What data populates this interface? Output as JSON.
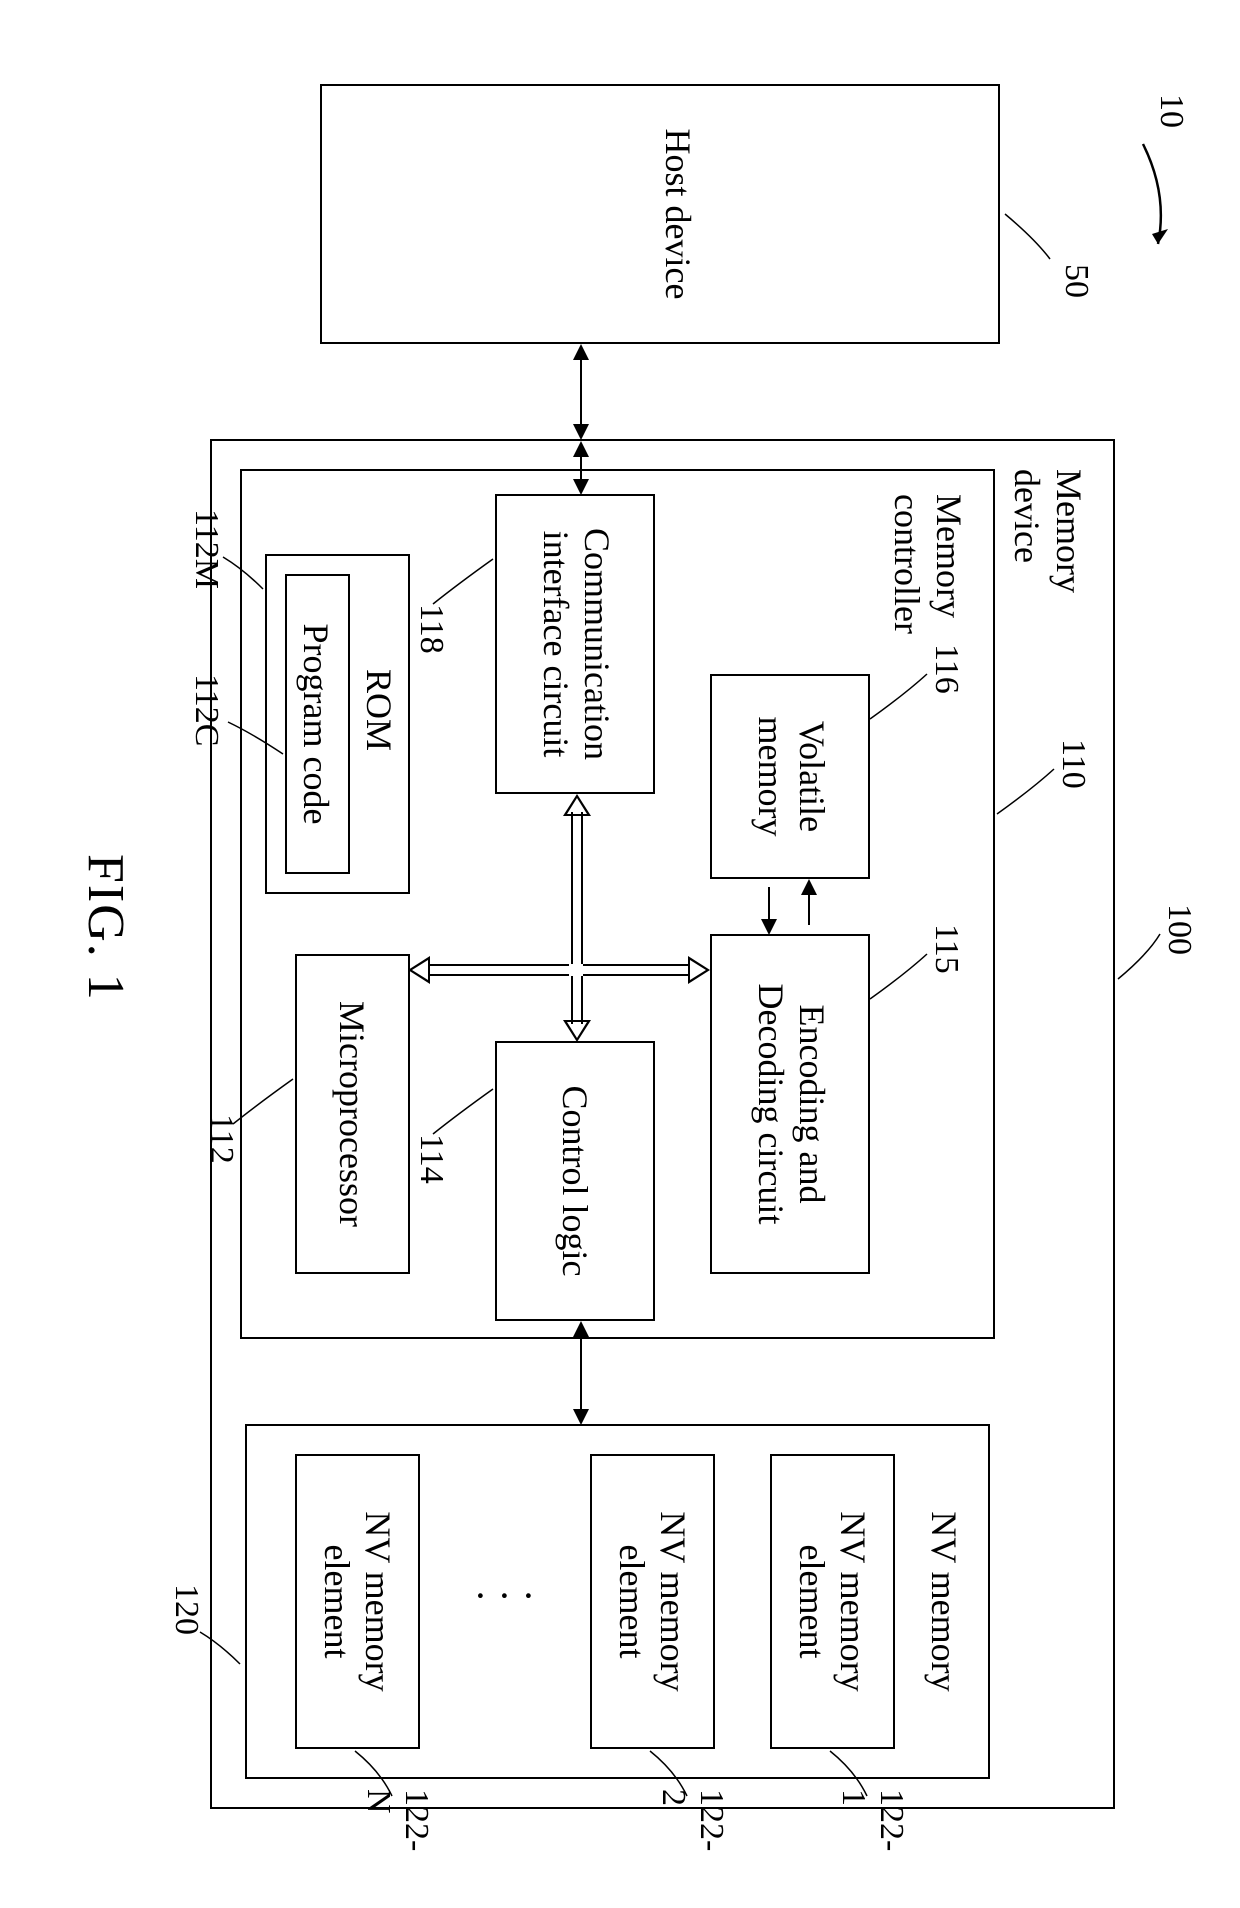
{
  "figure": {
    "caption": "FIG. 1",
    "refs": {
      "system": "10",
      "host": "50",
      "memory_device": "100",
      "memory_controller": "110",
      "microprocessor": "112",
      "rom": "112M",
      "program_code": "112C",
      "control_logic": "114",
      "encdec": "115",
      "volatile_memory": "116",
      "comm_if": "118",
      "nv_memory": "120",
      "nv_elem_1": "122-1",
      "nv_elem_2": "122-2",
      "nv_elem_n": "122-N"
    }
  },
  "blocks": {
    "host": "Host device",
    "memory_device": "Memory\ndevice",
    "memory_controller": "Memory\ncontroller",
    "volatile_memory": "Volatile\nmemory",
    "encdec": "Encoding and\nDecoding circuit",
    "comm_if": "Communication\ninterface circuit",
    "control_logic": "Control logic",
    "microprocessor": "Microprocessor",
    "rom": "ROM",
    "program_code": "Program code",
    "nv_memory": "NV memory",
    "nv_elem_1": "NV memory\nelement",
    "nv_elem_2": "NV memory\nelement",
    "nv_elem_n": "NV memory\nelement"
  },
  "style": {
    "stroke": "#000000",
    "bg": "#ffffff",
    "font": "Times New Roman",
    "font_size_label": 36,
    "font_size_ref": 34,
    "font_size_caption": 52
  }
}
